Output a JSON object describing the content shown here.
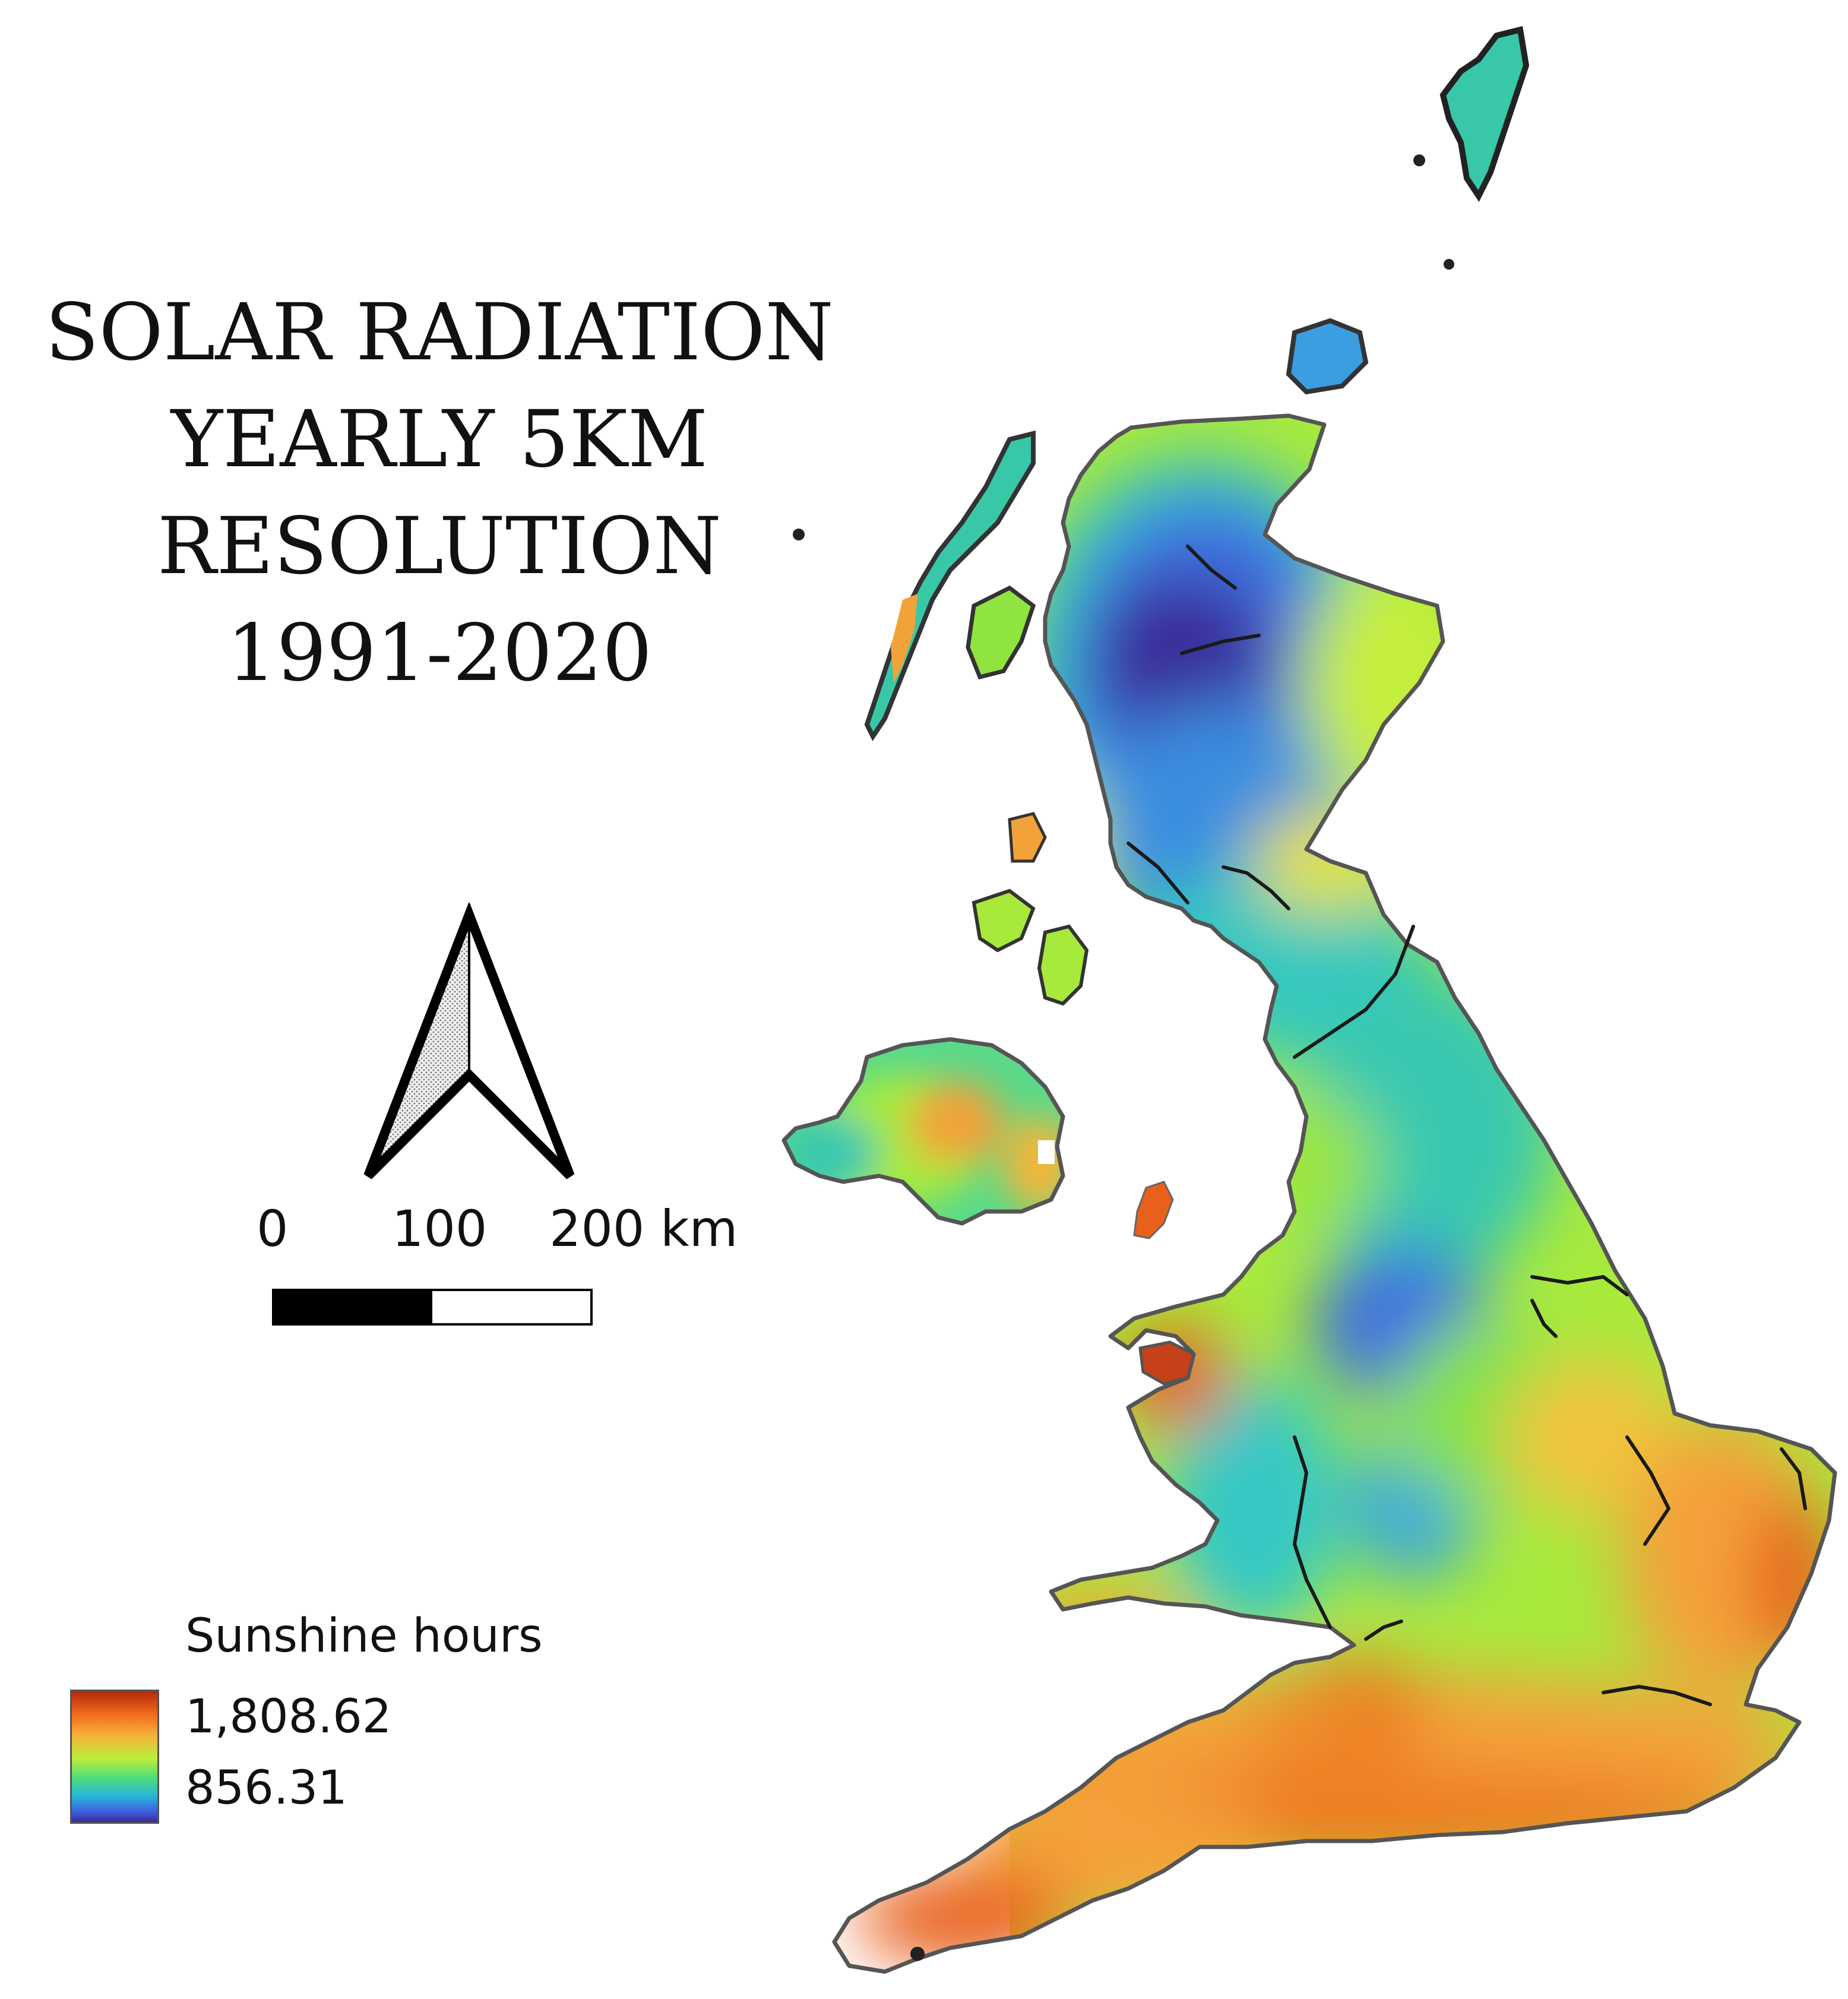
{
  "title": {
    "line1": "SOLAR RADIATION",
    "line2": "YEARLY 5KM",
    "line3": "RESOLUTION",
    "line4": "1991-2020"
  },
  "scale_bar": {
    "label_0": "0",
    "label_100": "100",
    "label_200": "200 km"
  },
  "legend": {
    "title": "Sunshine hours",
    "max_label": "1,808.62",
    "min_label": "856.31",
    "ramp_colors": [
      "#b22a0a",
      "#f26b1f",
      "#f7b33a",
      "#b8ef3a",
      "#4fdc7a",
      "#27b7d9",
      "#3d5fe0",
      "#3b2a9a"
    ]
  },
  "map": {
    "region": "Great Britain and Northern Ireland",
    "colors": {
      "high": "#e8601c",
      "upper": "#f7b33a",
      "mid": "#b8ef3a",
      "lower": "#4fdc7a",
      "low_cyan": "#2fc2d0",
      "low": "#3f6fe0",
      "lowest": "#3b2a9a",
      "outline": "#555555",
      "rivers": "#1a1a1a"
    }
  }
}
